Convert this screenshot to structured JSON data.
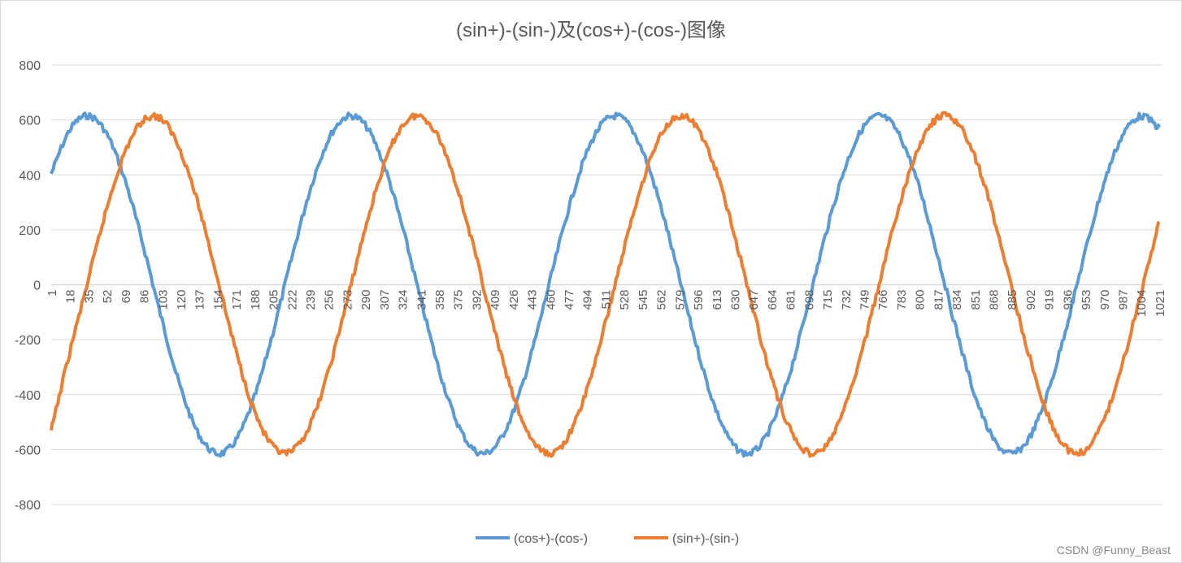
{
  "chart_data": {
    "type": "line",
    "title": "(sin+)-(sin-)及(cos+)-(cos-)图像",
    "xlabel": "",
    "ylabel": "",
    "x": [
      1,
      18,
      35,
      52,
      69,
      86,
      103,
      120,
      137,
      154,
      171,
      188,
      205,
      222,
      239,
      256,
      273,
      290,
      307,
      324,
      341,
      358,
      375,
      392,
      409,
      426,
      443,
      460,
      477,
      494,
      511,
      528,
      545,
      562,
      579,
      596,
      613,
      630,
      647,
      664,
      681,
      698,
      715,
      732,
      749,
      766,
      783,
      800,
      817,
      834,
      851,
      868,
      885,
      902,
      919,
      936,
      953,
      970,
      987,
      1004,
      1021
    ],
    "x_tick_labels": [
      "1",
      "18",
      "35",
      "52",
      "69",
      "86",
      "103",
      "120",
      "137",
      "154",
      "171",
      "188",
      "205",
      "222",
      "239",
      "256",
      "273",
      "290",
      "307",
      "324",
      "341",
      "358",
      "375",
      "392",
      "409",
      "426",
      "443",
      "460",
      "477",
      "494",
      "511",
      "528",
      "545",
      "562",
      "579",
      "596",
      "613",
      "630",
      "647",
      "664",
      "681",
      "698",
      "715",
      "732",
      "749",
      "766",
      "783",
      "800",
      "817",
      "834",
      "851",
      "868",
      "885",
      "902",
      "919",
      "936",
      "953",
      "970",
      "987",
      "1004",
      "1021"
    ],
    "xlim": [
      1,
      1024
    ],
    "ylim": [
      -800,
      800
    ],
    "y_ticks": [
      -800,
      -600,
      -400,
      -200,
      0,
      200,
      400,
      600,
      800
    ],
    "y_tick_labels": [
      "-800",
      "-600",
      "-400",
      "-200",
      "0",
      "200",
      "400",
      "600",
      "800"
    ],
    "grid": true,
    "legend_position": "bottom",
    "series": [
      {
        "name": "(cos+)-(cos-)",
        "color": "#5B9BD5",
        "values": [
          404,
          563,
          615,
          550,
          380,
          138,
          -130,
          -374,
          -546,
          -615,
          -566,
          -410,
          -176,
          91,
          341,
          527,
          612,
          581,
          439,
          214,
          -52,
          -308,
          -505,
          -606,
          -592,
          -466,
          -251,
          12,
          272,
          481,
          598,
          602,
          491,
          287,
          28,
          -236,
          -455,
          -588,
          -609,
          -514,
          -321,
          -67,
          199,
          428,
          575,
          613,
          535,
          354,
          107,
          -161,
          -398,
          -560,
          -615,
          -553,
          -386,
          -146,
          122,
          367,
          542,
          614,
          569
        ]
      },
      {
        "name": "(sin+)-(sin-)",
        "color": "#ED7D31",
        "values": [
          -530,
          -247,
          16,
          276,
          484,
          599,
          601,
          488,
          283,
          24,
          -240,
          -458,
          -589,
          -608,
          -512,
          -318,
          -64,
          203,
          431,
          577,
          613,
          533,
          351,
          103,
          -165,
          -401,
          -561,
          -615,
          -551,
          -383,
          -142,
          126,
          370,
          544,
          614,
          568,
          413,
          180,
          -87,
          -338,
          -524,
          -611,
          -582,
          -442,
          -218,
          48,
          304,
          503,
          606,
          594,
          469,
          255,
          -8,
          -269,
          -479,
          -597,
          -603,
          -493,
          -290,
          -32,
          233
        ]
      }
    ]
  },
  "watermark": "CSDN @Funny_Beast"
}
